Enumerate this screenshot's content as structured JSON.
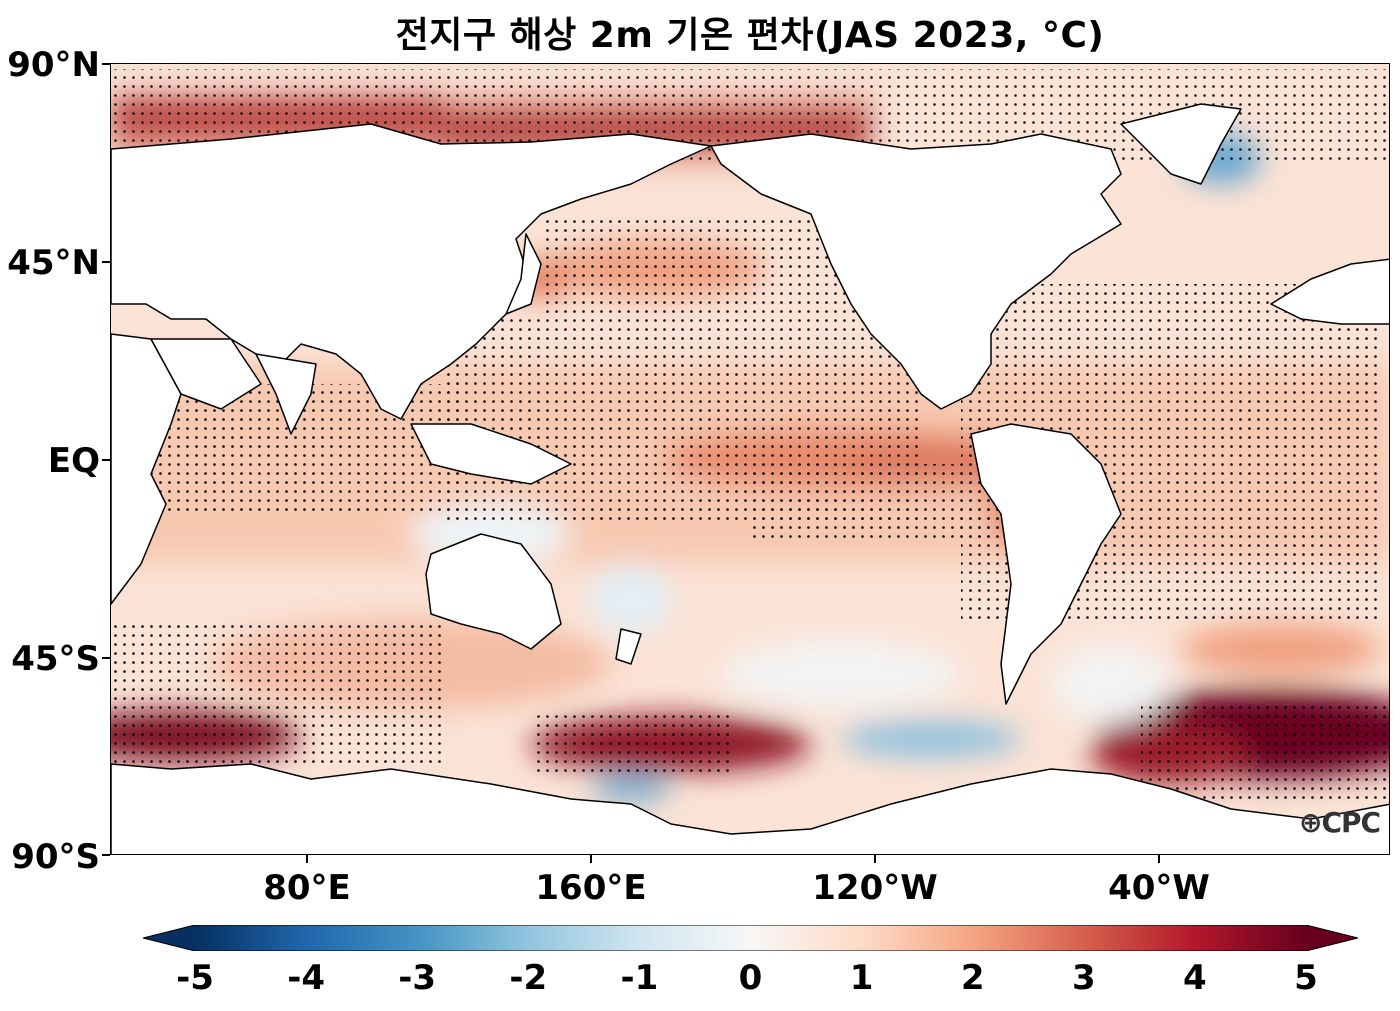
{
  "title": "전지구 해상 2m 기온 편차(JAS 2023, °C)",
  "map": {
    "projection": "PlateCarree",
    "central_longitude": "centered near 180°",
    "lat_range": [
      -90,
      90
    ],
    "lat_ticks": [
      "90°N",
      "45°N",
      "EQ",
      "45°S",
      "90°S"
    ],
    "lon_ticks": [
      "80°E",
      "160°E",
      "120°W",
      "40°W"
    ],
    "field": "2m air temperature anomaly over ocean",
    "stippling": "dots mark significant anomaly regions",
    "land_fill": "#ffffff",
    "coastline_color": "#000000"
  },
  "colorbar": {
    "colormap": "RdBu_r",
    "min": -5,
    "max": 5,
    "extend": "both",
    "ticks": [
      "-5",
      "-4",
      "-3",
      "-2",
      "-1",
      "0",
      "1",
      "2",
      "3",
      "4",
      "5"
    ],
    "colors": [
      "#053061",
      "#2166ac",
      "#4393c3",
      "#92c5de",
      "#d1e5f0",
      "#f7f7f7",
      "#fddbc7",
      "#f4a582",
      "#d6604d",
      "#b2182b",
      "#67001f"
    ]
  },
  "watermark": "CPC"
}
